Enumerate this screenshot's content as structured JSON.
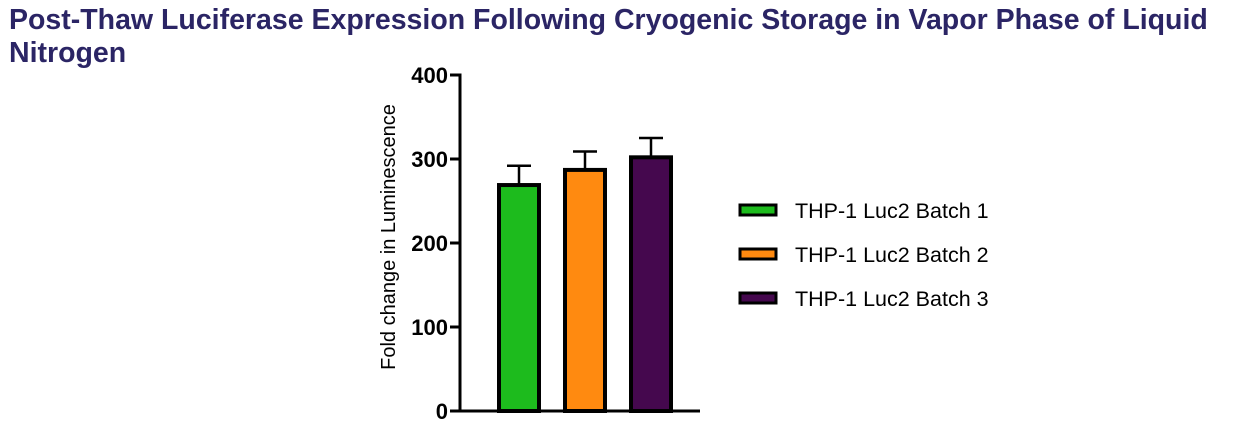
{
  "chart_data": {
    "type": "bar",
    "title": "Post-Thaw Luciferase Expression Following Cryogenic Storage in Vapor Phase of Liquid Nitrogen",
    "xlabel": "",
    "ylabel": "Fold change in Luminescence",
    "ylim": [
      0,
      400
    ],
    "yticks": [
      0,
      100,
      200,
      300,
      400
    ],
    "grid": false,
    "legend_position": "right",
    "series": [
      {
        "name": "THP-1 Luc2 Batch 1",
        "value": 269,
        "error": 23,
        "color": "#1dbb1d"
      },
      {
        "name": "THP-1 Luc2 Batch 2",
        "value": 287,
        "error": 22,
        "color": "#ff8a10"
      },
      {
        "name": "THP-1 Luc2 Batch 3",
        "value": 302,
        "error": 23,
        "color": "#45084e"
      }
    ]
  }
}
